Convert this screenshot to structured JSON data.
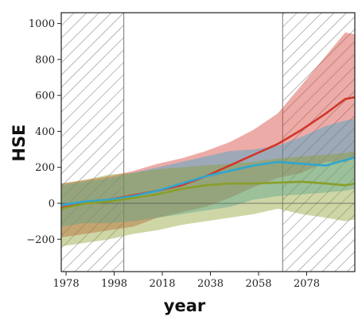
{
  "chart_data": {
    "type": "area",
    "title": "",
    "xlabel": "year",
    "ylabel": "HSE",
    "xlim": [
      1976,
      2098
    ],
    "ylim": [
      -380,
      1060
    ],
    "xticks": [
      1978,
      1998,
      2018,
      2038,
      2058,
      2078
    ],
    "yticks": [
      -200,
      0,
      200,
      400,
      600,
      800,
      1000
    ],
    "zero_line": 0,
    "hatched_regions": [
      [
        1976,
        2002
      ],
      [
        2068,
        2098
      ]
    ],
    "grid": false,
    "legend": "none",
    "colors": {
      "red": "#d1372a",
      "blue": "#2fa6cf",
      "green": "#8a9e2a",
      "axis": "#222222"
    },
    "x": [
      1976,
      1986,
      1996,
      2006,
      2016,
      2026,
      2036,
      2046,
      2056,
      2066,
      2076,
      2086,
      2094,
      2098
    ],
    "series": [
      {
        "color": "#d1372a",
        "mean": [
          -25,
          0,
          20,
          45,
          70,
          100,
          150,
          210,
          270,
          330,
          410,
          500,
          580,
          590
        ],
        "upper": [
          110,
          130,
          150,
          180,
          220,
          250,
          290,
          340,
          410,
          500,
          660,
          820,
          950,
          940
        ],
        "lower": [
          -190,
          -170,
          -150,
          -130,
          -80,
          -50,
          -20,
          30,
          90,
          140,
          170,
          230,
          230,
          250
        ]
      },
      {
        "color": "#2fa6cf",
        "mean": [
          -10,
          10,
          20,
          40,
          70,
          110,
          150,
          180,
          210,
          230,
          220,
          210,
          240,
          255
        ],
        "upper": [
          100,
          120,
          140,
          170,
          200,
          230,
          260,
          290,
          300,
          320,
          370,
          430,
          460,
          470
        ],
        "lower": [
          -130,
          -110,
          -110,
          -100,
          -80,
          -60,
          -40,
          -20,
          20,
          40,
          50,
          60,
          70,
          80
        ]
      },
      {
        "color": "#8a9e2a",
        "mean": [
          -30,
          0,
          10,
          30,
          50,
          80,
          100,
          110,
          110,
          115,
          120,
          110,
          100,
          110
        ],
        "upper": [
          110,
          130,
          160,
          170,
          190,
          200,
          210,
          220,
          230,
          250,
          260,
          270,
          280,
          290
        ],
        "lower": [
          -240,
          -220,
          -200,
          -170,
          -150,
          -120,
          -100,
          -80,
          -60,
          -30,
          -60,
          -80,
          -100,
          -90
        ]
      }
    ]
  }
}
